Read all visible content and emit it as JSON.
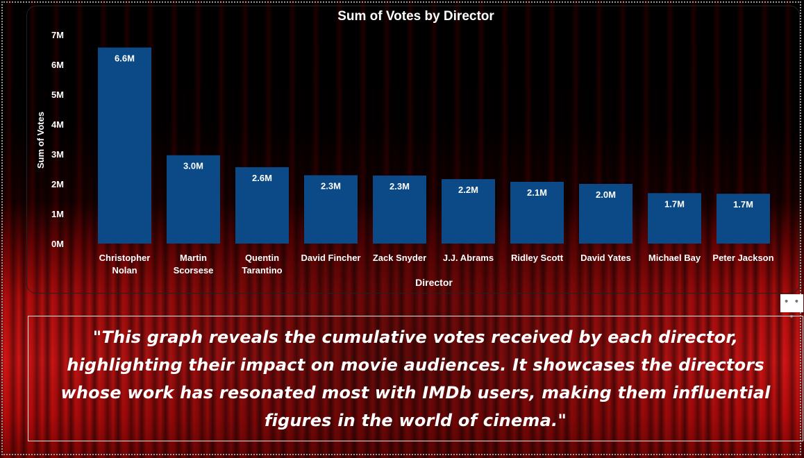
{
  "chart_data": {
    "type": "bar",
    "title": "Sum of Votes by Director",
    "xlabel": "Director",
    "ylabel": "Sum of Votes",
    "ylim": [
      0,
      7000000
    ],
    "yticks": [
      "0M",
      "1M",
      "2M",
      "3M",
      "4M",
      "5M",
      "6M",
      "7M"
    ],
    "grid": false,
    "categories": [
      [
        "Christopher",
        "Nolan"
      ],
      [
        "Martin",
        "Scorsese"
      ],
      [
        "Quentin",
        "Tarantino"
      ],
      [
        "David Fincher"
      ],
      [
        "Zack Snyder"
      ],
      [
        "J.J. Abrams"
      ],
      [
        "Ridley Scott"
      ],
      [
        "David Yates"
      ],
      [
        "Michael Bay"
      ],
      [
        "Peter Jackson"
      ]
    ],
    "values": [
      6570000,
      2960000,
      2560000,
      2290000,
      2280000,
      2160000,
      2070000,
      2000000,
      1690000,
      1670000
    ],
    "data_labels": [
      "6.6M",
      "3.0M",
      "2.6M",
      "2.3M",
      "2.3M",
      "2.2M",
      "2.1M",
      "2.0M",
      "1.7M",
      "1.7M"
    ],
    "bar_color": "#0b4a86"
  },
  "more_options": "• • •",
  "caption": "\"This graph reveals the cumulative votes received by each director, highlighting their impact on movie audiences. It showcases the directors whose work has resonated most with IMDb users, making them influential figures in the world of cinema.\"",
  "colors": {
    "text": "#ffffff",
    "bar": "#0b4a86",
    "background_top": "#000000",
    "background_bottom": "#d41616"
  }
}
